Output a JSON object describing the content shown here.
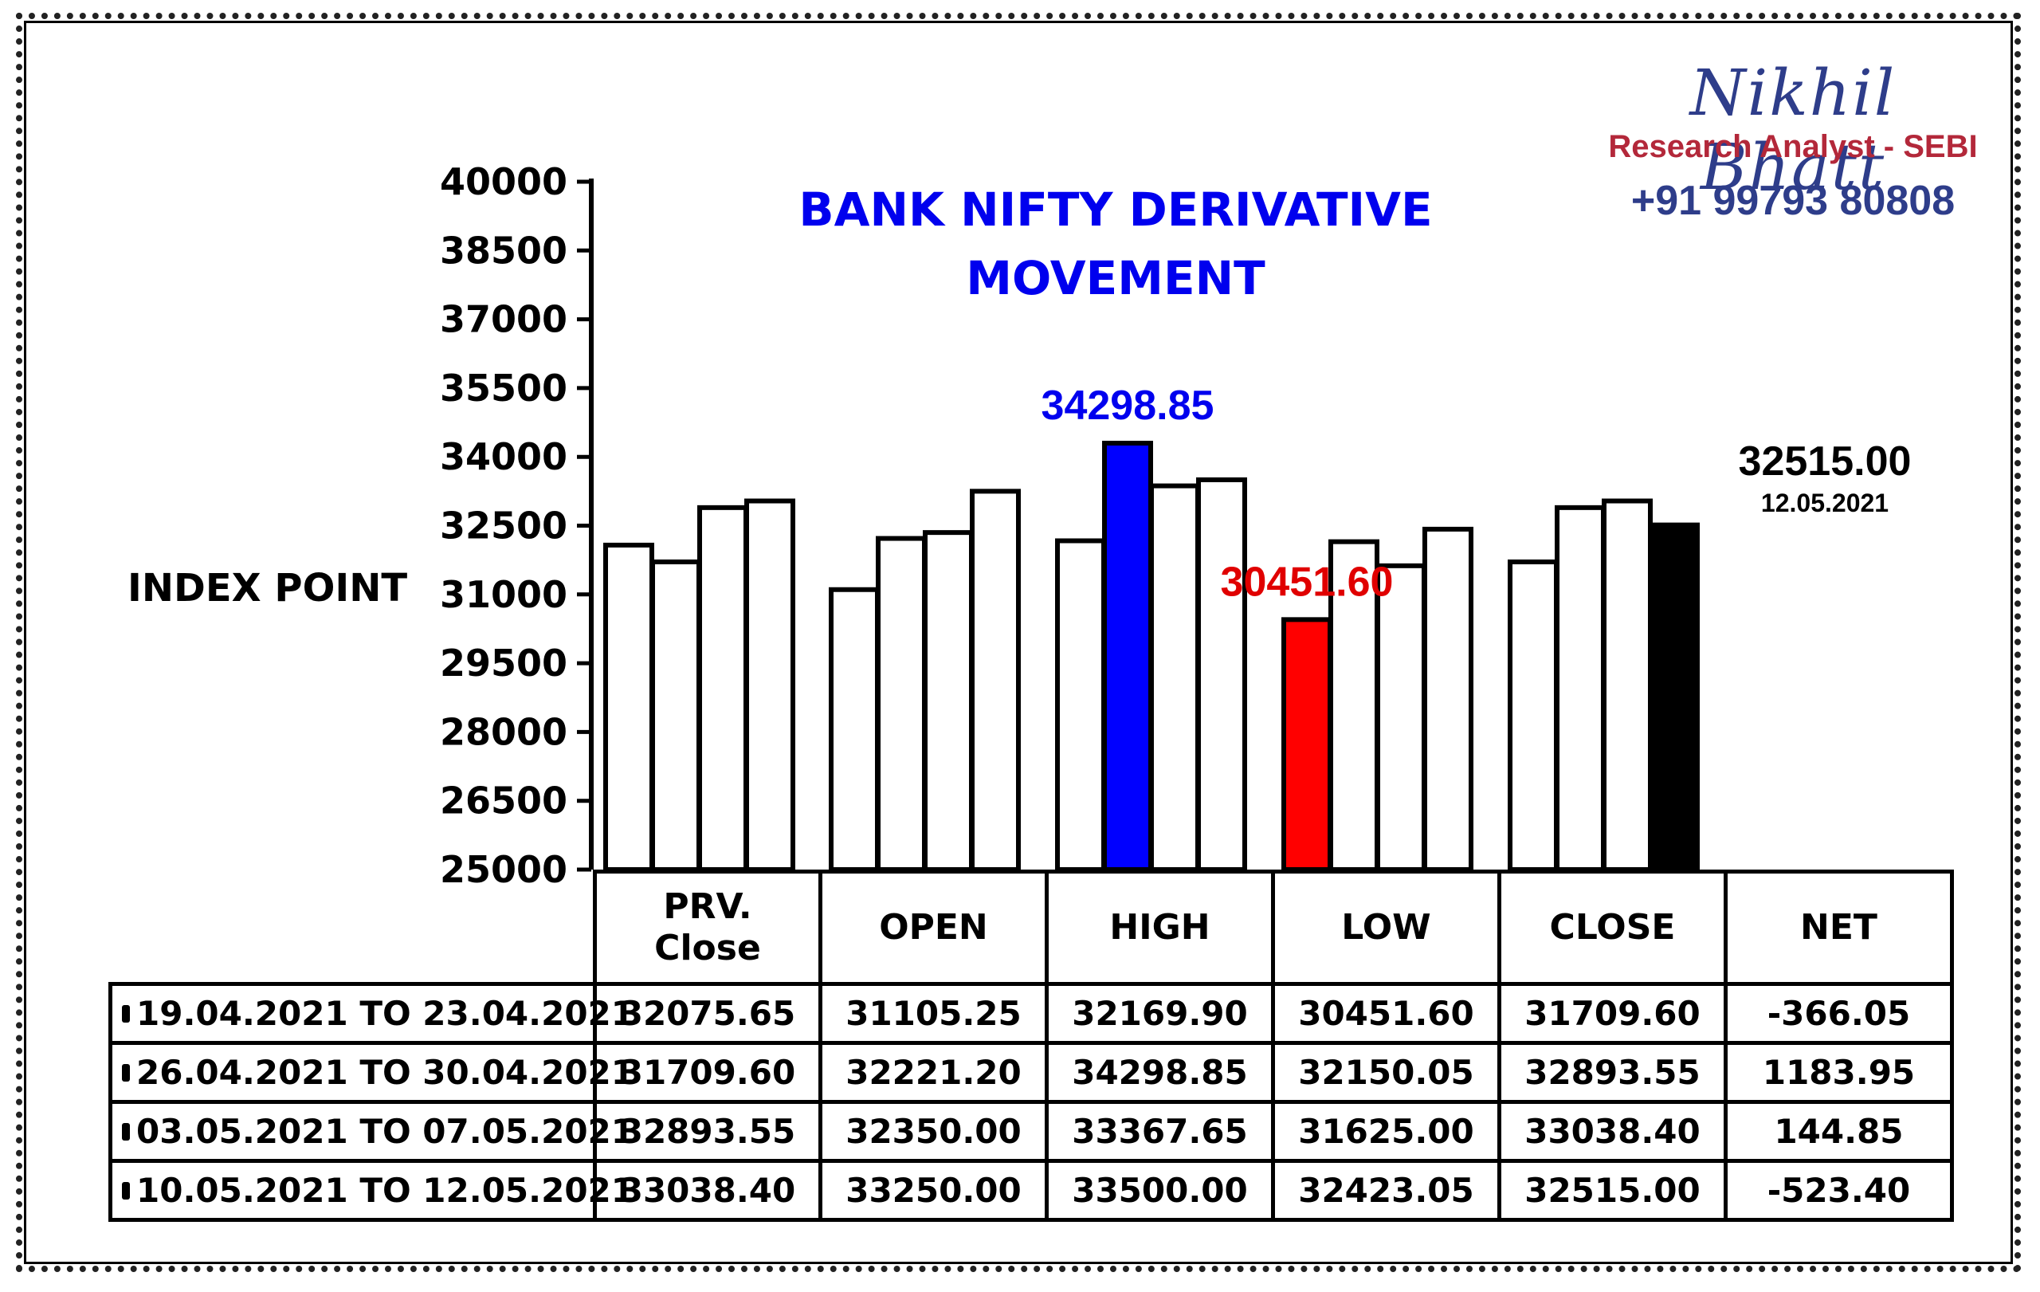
{
  "brand": {
    "name": "Nikhil Bhatt",
    "role": "Research Analyst - SEBI",
    "phone": "+91 99793 80808"
  },
  "colors": {
    "title": "#0000ee",
    "high_bar": "#0000ff",
    "low_bar": "#ff0000",
    "close_bar": "#000000",
    "brand_name": "#2e3d8a",
    "brand_role": "#b3283a"
  },
  "chart_data": {
    "type": "bar",
    "title": "BANK NIFTY DERIVATIVE\nMOVEMENT",
    "ylabel": "INDEX POINT",
    "ylim": [
      25000,
      40000
    ],
    "yticks": [
      "40000",
      "38500",
      "37000",
      "35500",
      "34000",
      "32500",
      "31000",
      "29500",
      "28000",
      "26500",
      "25000"
    ],
    "categories": [
      "PRV.\nClose",
      "OPEN",
      "HIGH",
      "LOW",
      "CLOSE"
    ],
    "series": [
      {
        "name": "19.04.2021 TO 23.04.2021",
        "values": [
          32075.65,
          31105.25,
          32169.9,
          30451.6,
          31709.6
        ]
      },
      {
        "name": "26.04.2021 TO 30.04.2021",
        "values": [
          31709.6,
          32221.2,
          34298.85,
          32150.05,
          32893.55
        ]
      },
      {
        "name": "03.05.2021 TO 07.05.2021",
        "values": [
          32893.55,
          32350.0,
          33367.65,
          31625.0,
          33038.4
        ]
      },
      {
        "name": "10.05.2021 TO 12.05.2021",
        "values": [
          33038.4,
          33250.0,
          33500.0,
          32423.05,
          32515.0
        ]
      }
    ],
    "highlights": [
      {
        "category": 2,
        "series": 1,
        "color": "#0000ff",
        "label": "34298.85",
        "label_color": "#0000ee"
      },
      {
        "category": 3,
        "series": 0,
        "color": "#ff0000",
        "label": "30451.60",
        "label_color": "#e00000"
      },
      {
        "category": 4,
        "series": 3,
        "color": "#000000",
        "label": "32515.00",
        "sublabel": "12.05.2021",
        "label_color": "#000000"
      }
    ],
    "table": {
      "headers": [
        "PRV.\nClose",
        "OPEN",
        "HIGH",
        "LOW",
        "CLOSE",
        "NET"
      ],
      "rows": [
        {
          "label": "19.04.2021 TO 23.04.2021",
          "cells": [
            "32075.65",
            "31105.25",
            "32169.90",
            "30451.60",
            "31709.60",
            "-366.05"
          ]
        },
        {
          "label": "26.04.2021 TO 30.04.2021",
          "cells": [
            "31709.60",
            "32221.20",
            "34298.85",
            "32150.05",
            "32893.55",
            "1183.95"
          ]
        },
        {
          "label": "03.05.2021 TO 07.05.2021",
          "cells": [
            "32893.55",
            "32350.00",
            "33367.65",
            "31625.00",
            "33038.40",
            "144.85"
          ]
        },
        {
          "label": "10.05.2021 TO 12.05.2021",
          "cells": [
            "33038.40",
            "33250.00",
            "33500.00",
            "32423.05",
            "32515.00",
            "-523.40"
          ]
        }
      ]
    }
  }
}
